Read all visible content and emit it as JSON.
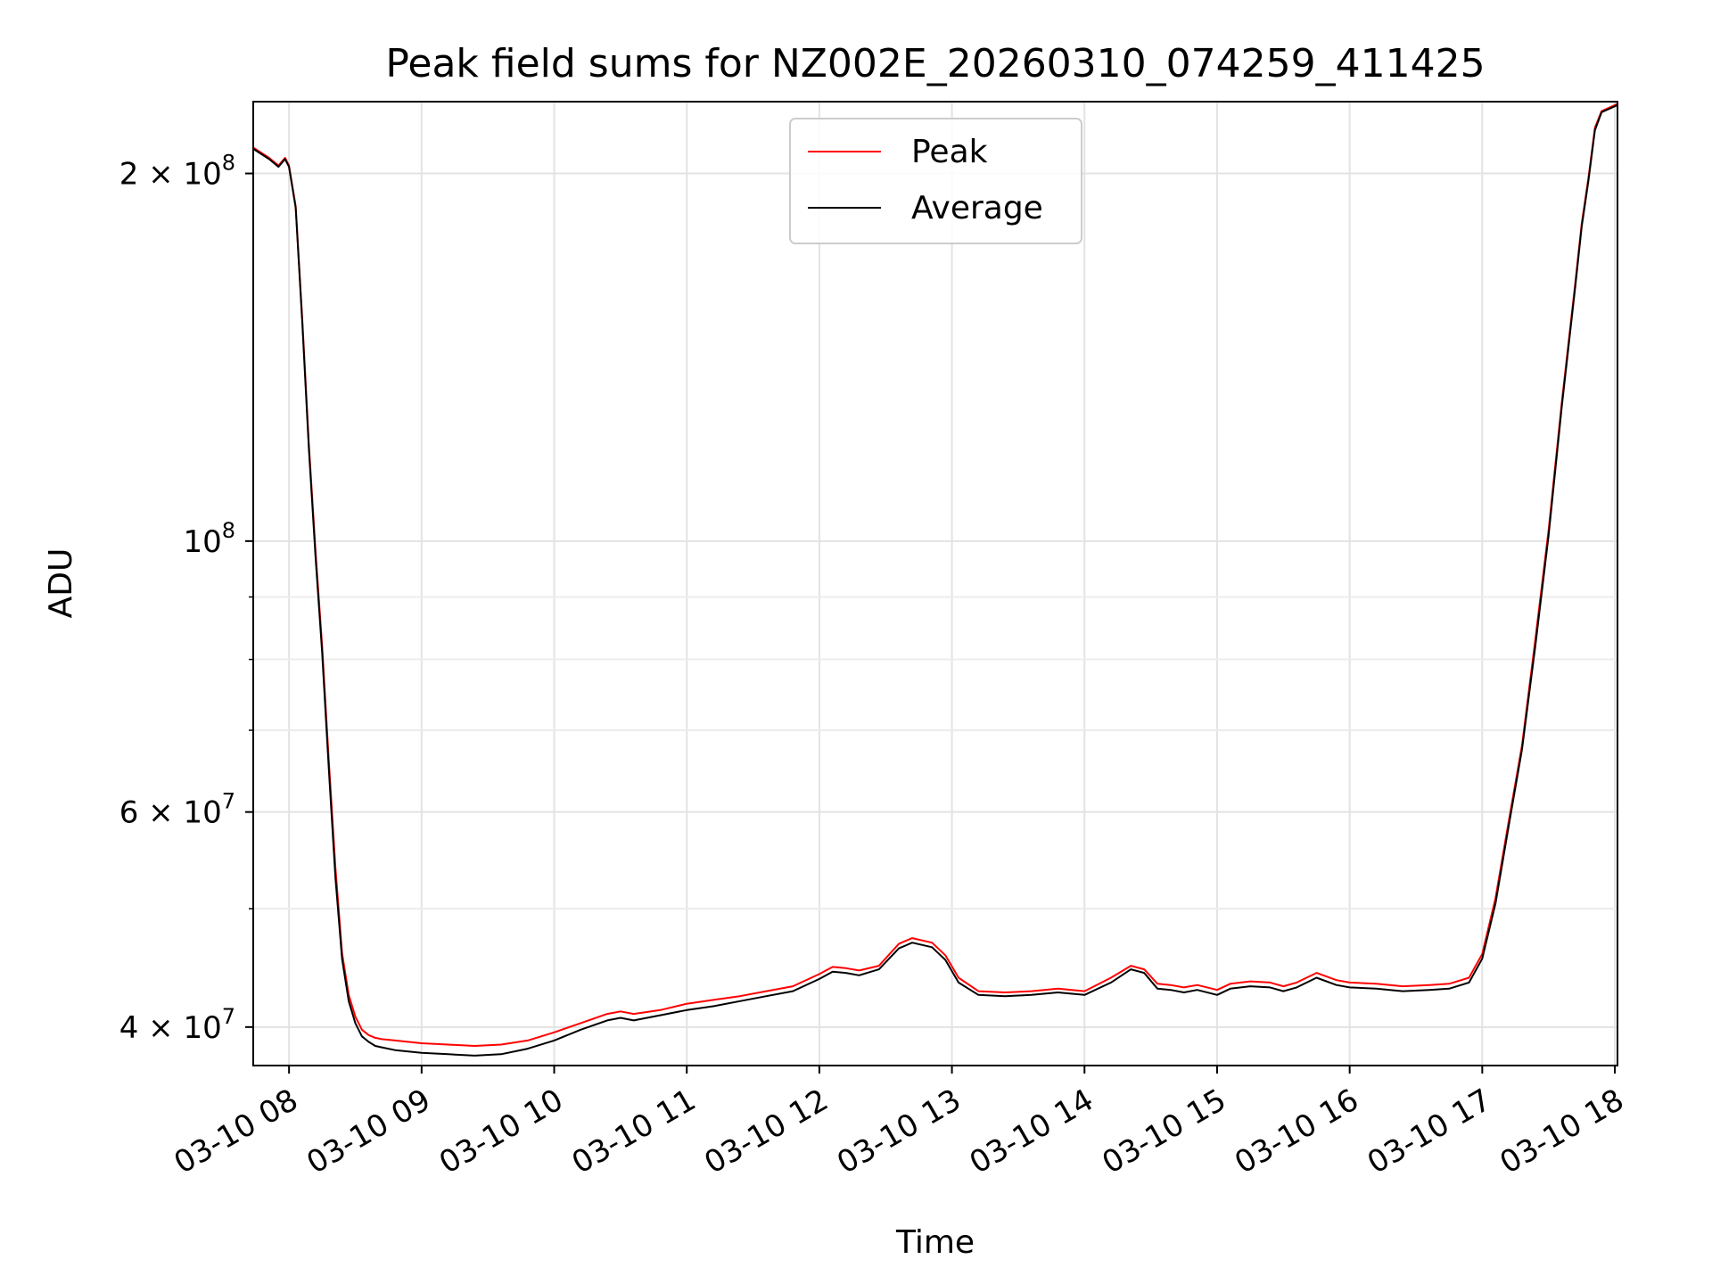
{
  "chart_data": {
    "type": "line",
    "title": "Peak field sums for NZ002E_20260310_074259_411425",
    "xlabel": "Time",
    "ylabel": "ADU",
    "yscale": "log",
    "xlim": [
      7.73,
      18.02
    ],
    "ylim": [
      37200000,
      229000000
    ],
    "grid": true,
    "legend_position": "top-center",
    "x_ticks": [
      {
        "value": 8,
        "label": "03-10 08"
      },
      {
        "value": 9,
        "label": "03-10 09"
      },
      {
        "value": 10,
        "label": "03-10 10"
      },
      {
        "value": 11,
        "label": "03-10 11"
      },
      {
        "value": 12,
        "label": "03-10 12"
      },
      {
        "value": 13,
        "label": "03-10 13"
      },
      {
        "value": 14,
        "label": "03-10 14"
      },
      {
        "value": 15,
        "label": "03-10 15"
      },
      {
        "value": 16,
        "label": "03-10 16"
      },
      {
        "value": 17,
        "label": "03-10 17"
      },
      {
        "value": 18,
        "label": "03-10 18"
      }
    ],
    "y_major_ticks": [
      {
        "value": 40000000,
        "mantissa": "4",
        "exponent": "7"
      },
      {
        "value": 60000000,
        "mantissa": "6",
        "exponent": "7"
      },
      {
        "value": 100000000,
        "mantissa": "",
        "exponent": "8"
      },
      {
        "value": 200000000,
        "mantissa": "2",
        "exponent": "8"
      }
    ],
    "y_minor_ticks": [
      50000000,
      70000000,
      80000000,
      90000000
    ],
    "series": [
      {
        "name": "Peak",
        "color": "#ff0000",
        "x": [
          7.73,
          7.85,
          7.92,
          7.97,
          8.0,
          8.05,
          8.1,
          8.15,
          8.2,
          8.25,
          8.3,
          8.35,
          8.4,
          8.45,
          8.5,
          8.55,
          8.6,
          8.65,
          8.7,
          8.8,
          9.0,
          9.2,
          9.4,
          9.6,
          9.8,
          10.0,
          10.2,
          10.4,
          10.5,
          10.6,
          10.8,
          11.0,
          11.2,
          11.4,
          11.6,
          11.8,
          12.0,
          12.1,
          12.2,
          12.3,
          12.45,
          12.6,
          12.7,
          12.85,
          12.95,
          13.05,
          13.2,
          13.4,
          13.6,
          13.8,
          14.0,
          14.2,
          14.35,
          14.45,
          14.55,
          14.65,
          14.75,
          14.85,
          15.0,
          15.1,
          15.25,
          15.4,
          15.5,
          15.6,
          15.75,
          15.9,
          16.0,
          16.2,
          16.4,
          16.6,
          16.75,
          16.9,
          17.0,
          17.1,
          17.2,
          17.3,
          17.4,
          17.5,
          17.6,
          17.7,
          17.75,
          17.8,
          17.85,
          17.9,
          18.02
        ],
        "values": [
          210000000,
          206000000,
          203000000,
          206000000,
          203000000,
          188000000,
          152000000,
          120000000,
          98000000,
          82000000,
          66000000,
          54000000,
          46000000,
          42500000,
          40800000,
          39800000,
          39400000,
          39200000,
          39100000,
          39000000,
          38800000,
          38700000,
          38600000,
          38700000,
          39000000,
          39600000,
          40300000,
          41000000,
          41200000,
          41000000,
          41300000,
          41800000,
          42100000,
          42400000,
          42800000,
          43200000,
          44200000,
          44800000,
          44700000,
          44500000,
          44900000,
          46800000,
          47300000,
          46900000,
          45800000,
          43900000,
          42800000,
          42700000,
          42800000,
          43000000,
          42800000,
          43900000,
          44900000,
          44600000,
          43400000,
          43300000,
          43100000,
          43300000,
          42900000,
          43400000,
          43600000,
          43500000,
          43200000,
          43500000,
          44300000,
          43700000,
          43500000,
          43400000,
          43200000,
          43300000,
          43400000,
          43900000,
          45900000,
          51000000,
          59000000,
          68000000,
          83000000,
          102000000,
          130000000,
          162000000,
          182000000,
          198000000,
          218000000,
          225000000,
          228000000
        ]
      },
      {
        "name": "Average",
        "color": "#000000",
        "x": [
          7.73,
          7.85,
          7.92,
          7.97,
          8.0,
          8.05,
          8.1,
          8.15,
          8.2,
          8.25,
          8.3,
          8.35,
          8.4,
          8.45,
          8.5,
          8.55,
          8.6,
          8.65,
          8.7,
          8.8,
          9.0,
          9.2,
          9.4,
          9.6,
          9.8,
          10.0,
          10.2,
          10.4,
          10.5,
          10.6,
          10.8,
          11.0,
          11.2,
          11.4,
          11.6,
          11.8,
          12.0,
          12.1,
          12.2,
          12.3,
          12.45,
          12.6,
          12.7,
          12.85,
          12.95,
          13.05,
          13.2,
          13.4,
          13.6,
          13.8,
          14.0,
          14.2,
          14.35,
          14.45,
          14.55,
          14.65,
          14.75,
          14.85,
          15.0,
          15.1,
          15.25,
          15.4,
          15.5,
          15.6,
          15.75,
          15.9,
          16.0,
          16.2,
          16.4,
          16.6,
          16.75,
          16.9,
          17.0,
          17.1,
          17.2,
          17.3,
          17.4,
          17.5,
          17.6,
          17.7,
          17.75,
          17.8,
          17.85,
          17.9,
          18.02
        ],
        "values": [
          209500000,
          205500000,
          202500000,
          205500000,
          202500000,
          187500000,
          151000000,
          119000000,
          97000000,
          81000000,
          65000000,
          53000000,
          45500000,
          42000000,
          40300000,
          39300000,
          38900000,
          38600000,
          38500000,
          38300000,
          38100000,
          38000000,
          37900000,
          38000000,
          38400000,
          39000000,
          39800000,
          40500000,
          40700000,
          40500000,
          40900000,
          41300000,
          41600000,
          42000000,
          42400000,
          42800000,
          43800000,
          44400000,
          44300000,
          44100000,
          44600000,
          46400000,
          46900000,
          46500000,
          45400000,
          43500000,
          42500000,
          42400000,
          42500000,
          42700000,
          42500000,
          43500000,
          44600000,
          44300000,
          43000000,
          42900000,
          42700000,
          42900000,
          42500000,
          43000000,
          43200000,
          43100000,
          42800000,
          43100000,
          43900000,
          43300000,
          43100000,
          43000000,
          42800000,
          42900000,
          43000000,
          43500000,
          45500000,
          50500000,
          58500000,
          67500000,
          82000000,
          101000000,
          129000000,
          161000000,
          181000000,
          197000000,
          217000000,
          224500000,
          227500000
        ]
      }
    ]
  }
}
